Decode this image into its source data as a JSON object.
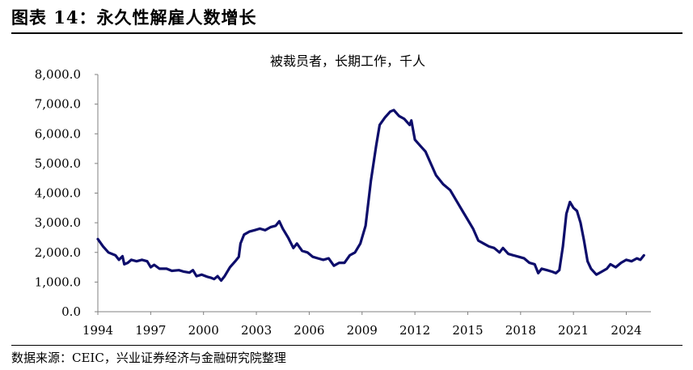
{
  "figure": {
    "title": "图表 14：永久性解雇人数增长",
    "source": "数据来源：CEIC，兴业证券经济与金融研究院整理"
  },
  "chart_data": {
    "type": "line",
    "title": "被裁员者，长期工作，千人",
    "xlabel": "",
    "ylabel": "",
    "xlim": [
      1994.0,
      2025.4
    ],
    "ylim": [
      0,
      8000
    ],
    "y_ticks": [
      "0.0",
      "1,000.0",
      "2,000.0",
      "3,000.0",
      "4,000.0",
      "5,000.0",
      "6,000.0",
      "7,000.0",
      "8,000.0"
    ],
    "y_tick_values": [
      0,
      1000,
      2000,
      3000,
      4000,
      5000,
      6000,
      7000,
      8000
    ],
    "x_ticks": [
      "1994",
      "1997",
      "2000",
      "2003",
      "2006",
      "2009",
      "2012",
      "2015",
      "2018",
      "2021",
      "2024"
    ],
    "x_tick_values": [
      1994,
      1997,
      2000,
      2003,
      2006,
      2009,
      2012,
      2015,
      2018,
      2021,
      2024
    ],
    "grid": false,
    "legend": "none",
    "line_color": "#0d0d6b",
    "series": [
      {
        "values": [
          [
            1994.0,
            2450
          ],
          [
            1994.3,
            2200
          ],
          [
            1994.6,
            2000
          ],
          [
            1995.0,
            1900
          ],
          [
            1995.2,
            1750
          ],
          [
            1995.4,
            1870
          ],
          [
            1995.5,
            1600
          ],
          [
            1995.7,
            1650
          ],
          [
            1995.9,
            1750
          ],
          [
            1996.2,
            1700
          ],
          [
            1996.5,
            1750
          ],
          [
            1996.8,
            1700
          ],
          [
            1997.0,
            1500
          ],
          [
            1997.2,
            1580
          ],
          [
            1997.5,
            1450
          ],
          [
            1997.9,
            1450
          ],
          [
            1998.2,
            1380
          ],
          [
            1998.6,
            1400
          ],
          [
            1998.9,
            1350
          ],
          [
            1999.2,
            1320
          ],
          [
            1999.4,
            1400
          ],
          [
            1999.6,
            1200
          ],
          [
            1999.9,
            1250
          ],
          [
            2000.2,
            1180
          ],
          [
            2000.4,
            1150
          ],
          [
            2000.6,
            1100
          ],
          [
            2000.8,
            1200
          ],
          [
            2001.0,
            1050
          ],
          [
            2001.2,
            1200
          ],
          [
            2001.5,
            1500
          ],
          [
            2001.8,
            1700
          ],
          [
            2002.0,
            1850
          ],
          [
            2002.1,
            2300
          ],
          [
            2002.3,
            2600
          ],
          [
            2002.6,
            2700
          ],
          [
            2002.9,
            2750
          ],
          [
            2003.2,
            2800
          ],
          [
            2003.5,
            2750
          ],
          [
            2003.8,
            2850
          ],
          [
            2004.1,
            2900
          ],
          [
            2004.3,
            3050
          ],
          [
            2004.5,
            2800
          ],
          [
            2004.8,
            2500
          ],
          [
            2005.1,
            2150
          ],
          [
            2005.3,
            2300
          ],
          [
            2005.6,
            2050
          ],
          [
            2005.9,
            2000
          ],
          [
            2006.2,
            1850
          ],
          [
            2006.5,
            1800
          ],
          [
            2006.8,
            1750
          ],
          [
            2007.1,
            1800
          ],
          [
            2007.4,
            1550
          ],
          [
            2007.7,
            1650
          ],
          [
            2008.0,
            1650
          ],
          [
            2008.3,
            1900
          ],
          [
            2008.6,
            2000
          ],
          [
            2008.9,
            2300
          ],
          [
            2009.2,
            2900
          ],
          [
            2009.5,
            4400
          ],
          [
            2009.8,
            5600
          ],
          [
            2010.0,
            6300
          ],
          [
            2010.3,
            6550
          ],
          [
            2010.6,
            6750
          ],
          [
            2010.8,
            6800
          ],
          [
            2011.1,
            6600
          ],
          [
            2011.4,
            6500
          ],
          [
            2011.7,
            6300
          ],
          [
            2011.8,
            6450
          ],
          [
            2012.0,
            5800
          ],
          [
            2012.3,
            5600
          ],
          [
            2012.6,
            5400
          ],
          [
            2012.9,
            5000
          ],
          [
            2013.2,
            4600
          ],
          [
            2013.6,
            4300
          ],
          [
            2014.0,
            4100
          ],
          [
            2014.3,
            3800
          ],
          [
            2014.7,
            3400
          ],
          [
            2015.0,
            3100
          ],
          [
            2015.3,
            2800
          ],
          [
            2015.6,
            2400
          ],
          [
            2015.9,
            2300
          ],
          [
            2016.2,
            2200
          ],
          [
            2016.5,
            2150
          ],
          [
            2016.8,
            2000
          ],
          [
            2017.0,
            2150
          ],
          [
            2017.3,
            1950
          ],
          [
            2017.6,
            1900
          ],
          [
            2017.9,
            1850
          ],
          [
            2018.2,
            1800
          ],
          [
            2018.5,
            1650
          ],
          [
            2018.8,
            1600
          ],
          [
            2019.0,
            1300
          ],
          [
            2019.2,
            1450
          ],
          [
            2019.5,
            1400
          ],
          [
            2019.8,
            1350
          ],
          [
            2020.0,
            1300
          ],
          [
            2020.2,
            1400
          ],
          [
            2020.4,
            2200
          ],
          [
            2020.6,
            3300
          ],
          [
            2020.8,
            3700
          ],
          [
            2021.0,
            3500
          ],
          [
            2021.2,
            3400
          ],
          [
            2021.4,
            3000
          ],
          [
            2021.6,
            2400
          ],
          [
            2021.8,
            1700
          ],
          [
            2022.0,
            1450
          ],
          [
            2022.3,
            1250
          ],
          [
            2022.6,
            1350
          ],
          [
            2022.9,
            1450
          ],
          [
            2023.1,
            1600
          ],
          [
            2023.4,
            1500
          ],
          [
            2023.7,
            1650
          ],
          [
            2024.0,
            1750
          ],
          [
            2024.3,
            1700
          ],
          [
            2024.6,
            1800
          ],
          [
            2024.8,
            1750
          ],
          [
            2025.0,
            1900
          ]
        ]
      }
    ]
  }
}
